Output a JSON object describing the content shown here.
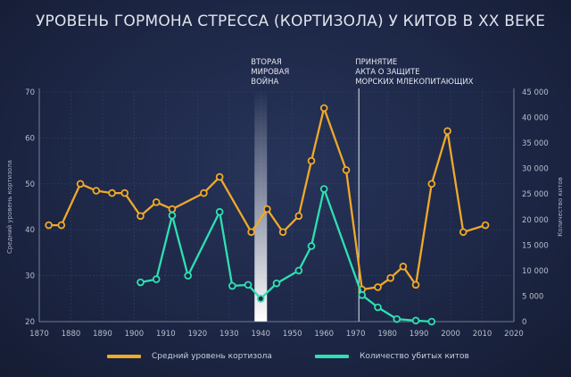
{
  "title": "УРОВЕНЬ ГОРМОНА СТРЕССА (КОРТИЗОЛА) У КИТОВ В ХХ ВЕКЕ",
  "colors": {
    "cortisol": "#f0a92a",
    "whales": "#2ee0b2",
    "background": "#1d2746",
    "grid": "#3b4b72"
  },
  "chart_data": {
    "type": "line",
    "x_ticks": [
      1870,
      1880,
      1890,
      1900,
      1910,
      1920,
      1930,
      1940,
      1950,
      1960,
      1970,
      1980,
      1990,
      2000,
      2010,
      2020
    ],
    "xlim": [
      1870,
      2020
    ],
    "y_left": {
      "label": "Средний уровень кортизола",
      "ticks": [
        20,
        30,
        40,
        50,
        60,
        70
      ],
      "lim": [
        20,
        70
      ]
    },
    "y_right": {
      "label": "Количество китов",
      "ticks": [
        "0",
        "5 000",
        "10 000",
        "15 000",
        "20 000",
        "25 000",
        "30 000",
        "35 000",
        "40 000",
        "45 000"
      ],
      "lim": [
        0,
        45000
      ]
    },
    "series": [
      {
        "name": "Средний уровень кортизола",
        "axis": "left",
        "x": [
          1873,
          1877,
          1883,
          1888,
          1893,
          1897,
          1902,
          1907,
          1912,
          1922,
          1927,
          1937,
          1942,
          1947,
          1952,
          1956,
          1960,
          1967,
          1972,
          1977,
          1981,
          1985,
          1989,
          1994,
          1999,
          2004,
          2011
        ],
        "y": [
          41,
          41,
          50,
          48.5,
          48,
          48,
          43,
          46,
          44.5,
          48,
          51.5,
          39.5,
          44.5,
          39.5,
          43,
          55,
          66.5,
          53,
          27,
          27.5,
          29.5,
          32,
          28,
          50,
          61.5,
          39.5,
          41
        ]
      },
      {
        "name": "Количество убитых китов",
        "axis": "right",
        "x": [
          1902,
          1907,
          1912,
          1917,
          1927,
          1931,
          1936,
          1940,
          1945,
          1952,
          1956,
          1960,
          1972,
          1977,
          1983,
          1989,
          1994
        ],
        "y": [
          7700,
          8300,
          20800,
          9000,
          21500,
          7000,
          7200,
          4500,
          7500,
          10000,
          14800,
          26000,
          5200,
          2800,
          500,
          200,
          0
        ]
      }
    ],
    "annotations": [
      {
        "text_lines": [
          "ВТОРАЯ",
          "МИРОВАЯ",
          "ВОЙНА"
        ],
        "x": 1940
      },
      {
        "text_lines": [
          "ПРИНЯТИЕ",
          "АКТА О ЗАЩИТЕ",
          "МОРСКИХ МЛЕКОПИТАЮЩИХ"
        ],
        "x": 1971
      }
    ],
    "legend": [
      {
        "label": "Средний уровень кортизола",
        "color": "#f0a92a"
      },
      {
        "label": "Количество убитых китов",
        "color": "#2ee0b2"
      }
    ]
  }
}
